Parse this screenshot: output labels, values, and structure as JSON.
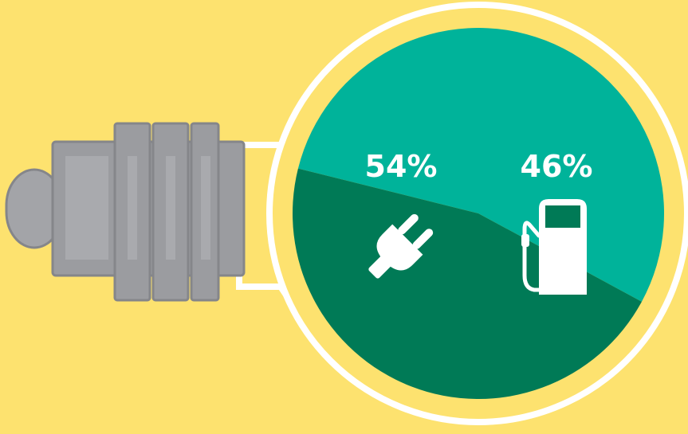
{
  "chart_data": {
    "type": "pie",
    "title": "",
    "slices": [
      {
        "value": 54,
        "label": "54%",
        "icon": "electric-plug-icon",
        "color": "#00b39a"
      },
      {
        "value": 46,
        "label": "46%",
        "icon": "fuel-pump-icon",
        "color": "#007a56"
      }
    ],
    "legend": "none"
  },
  "decoration": {
    "background_color": "#fde26f",
    "bulb_base_color": "#9b9ca0",
    "bulb_outline_color": "#ffffff"
  }
}
